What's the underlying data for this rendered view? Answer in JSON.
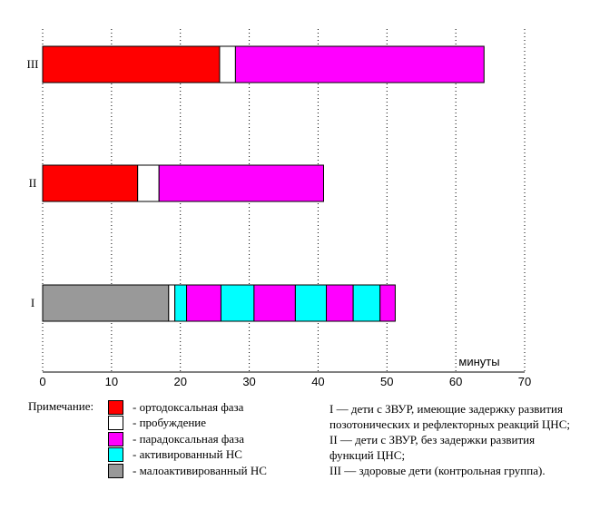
{
  "chart_data": {
    "type": "bar",
    "orientation": "horizontal",
    "stacked": true,
    "xlabel": "минуты",
    "xlim": [
      0,
      70
    ],
    "xticks": [
      0,
      10,
      20,
      30,
      40,
      50,
      60,
      70
    ],
    "grid": true,
    "categories": [
      "III",
      "II",
      "I"
    ],
    "states": [
      {
        "key": "ortho",
        "name": "- ортодоксальная фаза",
        "color": "#ff0000"
      },
      {
        "key": "wake",
        "name": "- пробуждение",
        "color": "#ffffff"
      },
      {
        "key": "para",
        "name": "- парадоксальная фаза",
        "color": "#ff00ff"
      },
      {
        "key": "active",
        "name": "- активированный НС",
        "color": "#00ffff"
      },
      {
        "key": "low",
        "name": "- малоактивированный НС",
        "color": "#999999"
      }
    ],
    "bars": [
      {
        "category": "III",
        "segments": [
          {
            "state": "ortho",
            "start": 0,
            "end": 25.7
          },
          {
            "state": "wake",
            "start": 25.7,
            "end": 28
          },
          {
            "state": "para",
            "start": 28,
            "end": 64.1
          }
        ]
      },
      {
        "category": "II",
        "segments": [
          {
            "state": "ortho",
            "start": 0,
            "end": 13.8
          },
          {
            "state": "wake",
            "start": 13.8,
            "end": 16.9
          },
          {
            "state": "para",
            "start": 16.9,
            "end": 40.8
          }
        ]
      },
      {
        "category": "I",
        "segments": [
          {
            "state": "low",
            "start": 0,
            "end": 18.3
          },
          {
            "state": "wake",
            "start": 18.3,
            "end": 19.2
          },
          {
            "state": "active",
            "start": 19.2,
            "end": 20.9
          },
          {
            "state": "para",
            "start": 20.9,
            "end": 25.9
          },
          {
            "state": "active",
            "start": 25.9,
            "end": 30.7
          },
          {
            "state": "para",
            "start": 30.7,
            "end": 36.7
          },
          {
            "state": "active",
            "start": 36.7,
            "end": 41.2
          },
          {
            "state": "para",
            "start": 41.2,
            "end": 45.1
          },
          {
            "state": "active",
            "start": 45.1,
            "end": 49
          },
          {
            "state": "para",
            "start": 49,
            "end": 51.2
          }
        ]
      }
    ]
  },
  "notes": {
    "title": "Примечание:",
    "explanations": [
      "I — дети с ЗВУР, имеющие задержку развития позотонических и рефлекторных реакций ЦНС;",
      "II — дети с ЗВУР, без задержки развития функций ЦНС;",
      "III — здоровые дети (контрольная группа)."
    ]
  }
}
